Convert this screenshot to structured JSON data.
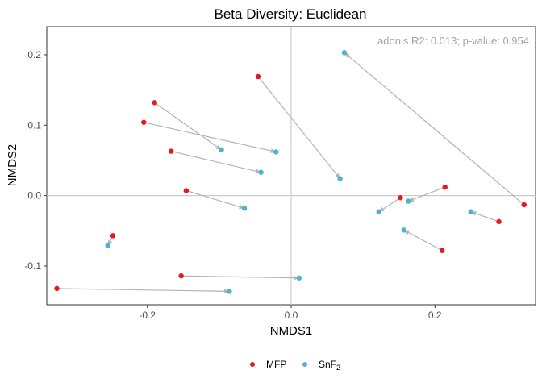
{
  "chart_data": {
    "type": "scatter",
    "title": "Beta Diversity: Euclidean",
    "xlabel": "NMDS1",
    "ylabel": "NMDS2",
    "xlim": [
      -0.34,
      0.34
    ],
    "ylim": [
      -0.155,
      0.24
    ],
    "xticks": [
      -0.2,
      0.0,
      0.2
    ],
    "xtick_labels": [
      "-0.2",
      "0.0",
      "0.2"
    ],
    "yticks": [
      -0.1,
      0.0,
      0.1,
      0.2
    ],
    "ytick_labels": [
      "-0.1",
      "0.0",
      "0.1",
      "0.2"
    ],
    "zero_lines": true,
    "grid": false,
    "annotation": "adonis R2: 0.013; p-value: 0.954",
    "legend_position": "bottom",
    "series": [
      {
        "name": "MFP",
        "label_base": "MFP",
        "label_sub": "",
        "color": "#e41a1c",
        "points": [
          {
            "x": -0.046,
            "y": 0.169
          },
          {
            "x": -0.19,
            "y": 0.132
          },
          {
            "x": -0.205,
            "y": 0.104
          },
          {
            "x": -0.167,
            "y": 0.063
          },
          {
            "x": -0.146,
            "y": 0.007
          },
          {
            "x": -0.248,
            "y": -0.057
          },
          {
            "x": -0.153,
            "y": -0.114
          },
          {
            "x": -0.326,
            "y": -0.132
          },
          {
            "x": 0.152,
            "y": -0.003
          },
          {
            "x": 0.214,
            "y": 0.012
          },
          {
            "x": 0.21,
            "y": -0.078
          },
          {
            "x": 0.289,
            "y": -0.037
          },
          {
            "x": 0.324,
            "y": -0.013
          }
        ]
      },
      {
        "name": "SnF2",
        "label_base": "SnF",
        "label_sub": "2",
        "color": "#4eb3d3",
        "points": [
          {
            "x": 0.068,
            "y": 0.024
          },
          {
            "x": -0.097,
            "y": 0.065
          },
          {
            "x": -0.021,
            "y": 0.062
          },
          {
            "x": -0.042,
            "y": 0.033
          },
          {
            "x": -0.065,
            "y": -0.018
          },
          {
            "x": -0.255,
            "y": -0.071
          },
          {
            "x": 0.011,
            "y": -0.117
          },
          {
            "x": -0.086,
            "y": -0.136
          },
          {
            "x": 0.122,
            "y": -0.023
          },
          {
            "x": 0.163,
            "y": -0.008
          },
          {
            "x": 0.157,
            "y": -0.049
          },
          {
            "x": 0.25,
            "y": -0.023
          },
          {
            "x": 0.074,
            "y": 0.203
          }
        ]
      }
    ],
    "arrows": [
      {
        "from": [
          -0.046,
          0.169
        ],
        "to": [
          0.068,
          0.024
        ]
      },
      {
        "from": [
          -0.19,
          0.132
        ],
        "to": [
          -0.097,
          0.065
        ]
      },
      {
        "from": [
          -0.205,
          0.104
        ],
        "to": [
          -0.021,
          0.062
        ]
      },
      {
        "from": [
          -0.167,
          0.063
        ],
        "to": [
          -0.042,
          0.033
        ]
      },
      {
        "from": [
          -0.146,
          0.007
        ],
        "to": [
          -0.065,
          -0.018
        ]
      },
      {
        "from": [
          -0.248,
          -0.057
        ],
        "to": [
          -0.255,
          -0.071
        ]
      },
      {
        "from": [
          -0.153,
          -0.114
        ],
        "to": [
          0.011,
          -0.117
        ]
      },
      {
        "from": [
          -0.326,
          -0.132
        ],
        "to": [
          -0.086,
          -0.136
        ]
      },
      {
        "from": [
          0.152,
          -0.003
        ],
        "to": [
          0.122,
          -0.023
        ]
      },
      {
        "from": [
          0.214,
          0.012
        ],
        "to": [
          0.163,
          -0.008
        ]
      },
      {
        "from": [
          0.21,
          -0.078
        ],
        "to": [
          0.157,
          -0.049
        ]
      },
      {
        "from": [
          0.289,
          -0.037
        ],
        "to": [
          0.25,
          -0.023
        ]
      },
      {
        "from": [
          0.324,
          -0.013
        ],
        "to": [
          0.074,
          0.203
        ]
      }
    ],
    "arrow_color": "#b3b3b3"
  }
}
